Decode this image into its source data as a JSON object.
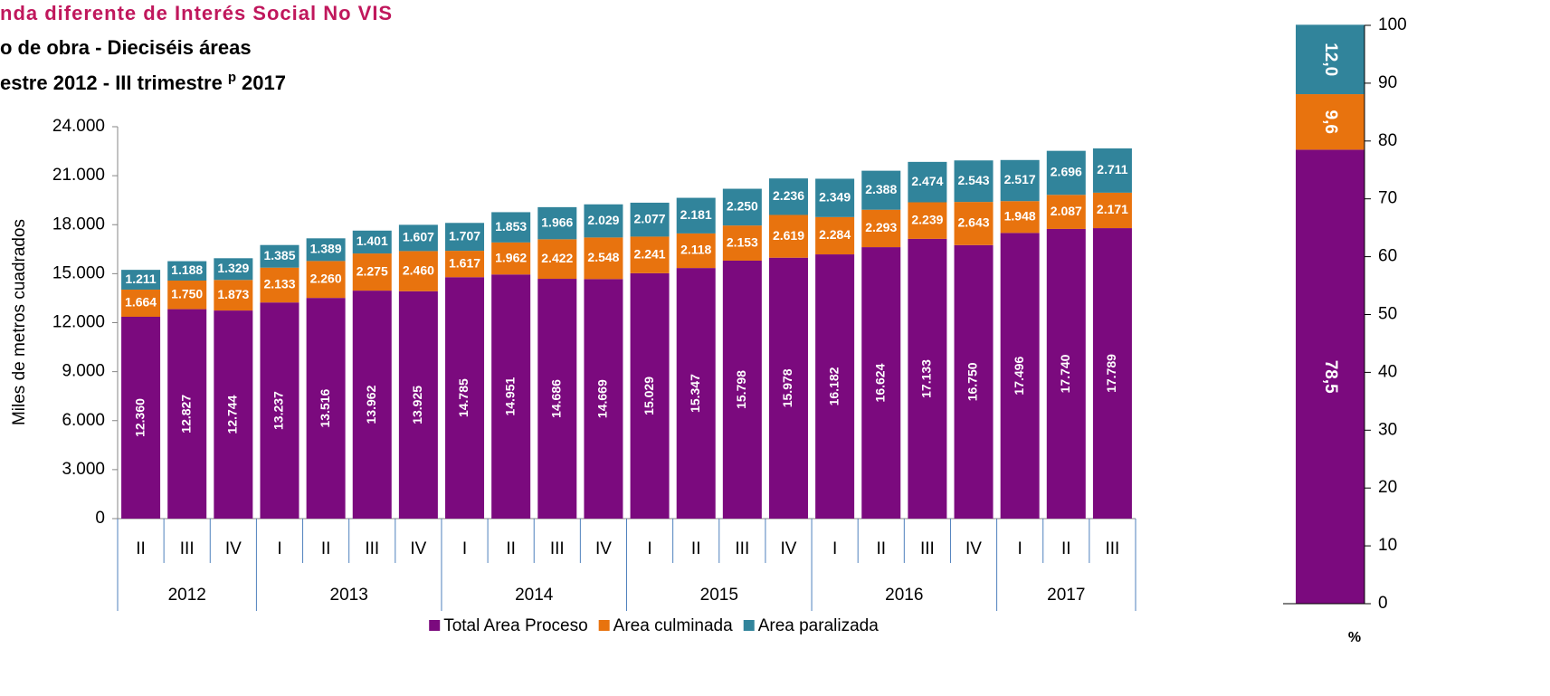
{
  "chart_data": [
    {
      "type": "stacked_bar",
      "title": "nda diferente de Interés Social No VIS",
      "subtitle": "o de obra - Dieciséis áreas",
      "subtitle2": "estre 2012 - III trimestre",
      "subtitle2_sup": "p",
      "subtitle2_end": "2017",
      "y_label": "Miles de metros cuadrados",
      "groups": [
        {
          "label": "2012",
          "categories": [
            "II",
            "III",
            "IV"
          ]
        },
        {
          "label": "2013",
          "categories": [
            "I",
            "II",
            "III",
            "IV"
          ]
        },
        {
          "label": "2014",
          "categories": [
            "I",
            "II",
            "III",
            "IV"
          ]
        },
        {
          "label": "2015",
          "categories": [
            "I",
            "II",
            "III",
            "IV"
          ]
        },
        {
          "label": "2016",
          "categories": [
            "I",
            "II",
            "III",
            "IV"
          ]
        },
        {
          "label": "2017",
          "categories": [
            "I",
            "II",
            "III"
          ]
        }
      ],
      "ylim": [
        0,
        24000
      ],
      "yticks": [
        0,
        {
          "value": 3000,
          "label": "3.000"
        },
        {
          "value": 6000,
          "label": "6.000"
        },
        {
          "value": 9000,
          "label": "9.000"
        },
        {
          "value": 12000,
          "label": "12.000"
        },
        {
          "value": 15000,
          "label": "15.000"
        },
        {
          "value": 18000,
          "label": "18.000"
        },
        {
          "value": 21000,
          "label": "21.000"
        },
        {
          "value": 24000,
          "label": "24.000"
        }
      ],
      "legend": "bottom",
      "series": [
        {
          "name": "Total Area Proceso",
          "color": "#7b0a7e",
          "values": [
            12360,
            12827,
            12744,
            13237,
            13516,
            13962,
            13925,
            14785,
            14951,
            14686,
            14669,
            15029,
            15347,
            15798,
            15978,
            16182,
            16624,
            17133,
            16750,
            17496,
            17740,
            17789
          ],
          "value_labels": [
            "12.360",
            "12.827",
            "12.744",
            "13.237",
            "13.516",
            "13.962",
            "13.925",
            "14.785",
            "14.951",
            "14.686",
            "14.669",
            "15.029",
            "15.347",
            "15.798",
            "15.978",
            "16.182",
            "16.624",
            "17.133",
            "16.750",
            "17.496",
            "17.740",
            "17.789"
          ]
        },
        {
          "name": "Area culminada",
          "color": "#e8730e",
          "values": [
            1664,
            1750,
            1873,
            2133,
            2260,
            2275,
            2460,
            1617,
            1962,
            2422,
            2548,
            2241,
            2118,
            2153,
            2619,
            2284,
            2293,
            2239,
            2643,
            1948,
            2087,
            2171
          ],
          "value_labels": [
            "1.664",
            "1.750",
            "1.873",
            "2.133",
            "2.260",
            "2.275",
            "2.460",
            "1.617",
            "1.962",
            "2.422",
            "2.548",
            "2.241",
            "2.118",
            "2.153",
            "2.619",
            "2.284",
            "2.293",
            "2.239",
            "2.643",
            "1.948",
            "2.087",
            "2.171"
          ]
        },
        {
          "name": "Area paralizada",
          "color": "#31849b",
          "values": [
            1211,
            1188,
            1329,
            1385,
            1389,
            1401,
            1607,
            1707,
            1853,
            1966,
            2029,
            2077,
            2181,
            2250,
            2236,
            2349,
            2388,
            2474,
            2543,
            2517,
            2696,
            2711
          ],
          "value_labels": [
            "1.211",
            "1.188",
            "1.329",
            "1.385",
            "1.389",
            "1.401",
            "1.607",
            "1.707",
            "1.853",
            "1.966",
            "2.029",
            "2.077",
            "2.181",
            "2.250",
            "2.236",
            "2.349",
            "2.388",
            "2.474",
            "2.543",
            "2.517",
            "2.696",
            "2.711"
          ]
        }
      ]
    },
    {
      "type": "stacked_bar_100",
      "y_label": "%",
      "ylim": [
        0,
        100
      ],
      "yticks": [
        0,
        10,
        20,
        30,
        40,
        50,
        60,
        70,
        80,
        90,
        100
      ],
      "series": [
        {
          "color": "#7b0a7e",
          "values": [
            78.5
          ],
          "value_labels": [
            "78,5"
          ]
        },
        {
          "color": "#e8730e",
          "values": [
            9.6
          ],
          "value_labels": [
            "9,6"
          ]
        },
        {
          "color": "#31849b",
          "values": [
            12.0
          ],
          "value_labels": [
            "12,0"
          ]
        }
      ]
    }
  ]
}
